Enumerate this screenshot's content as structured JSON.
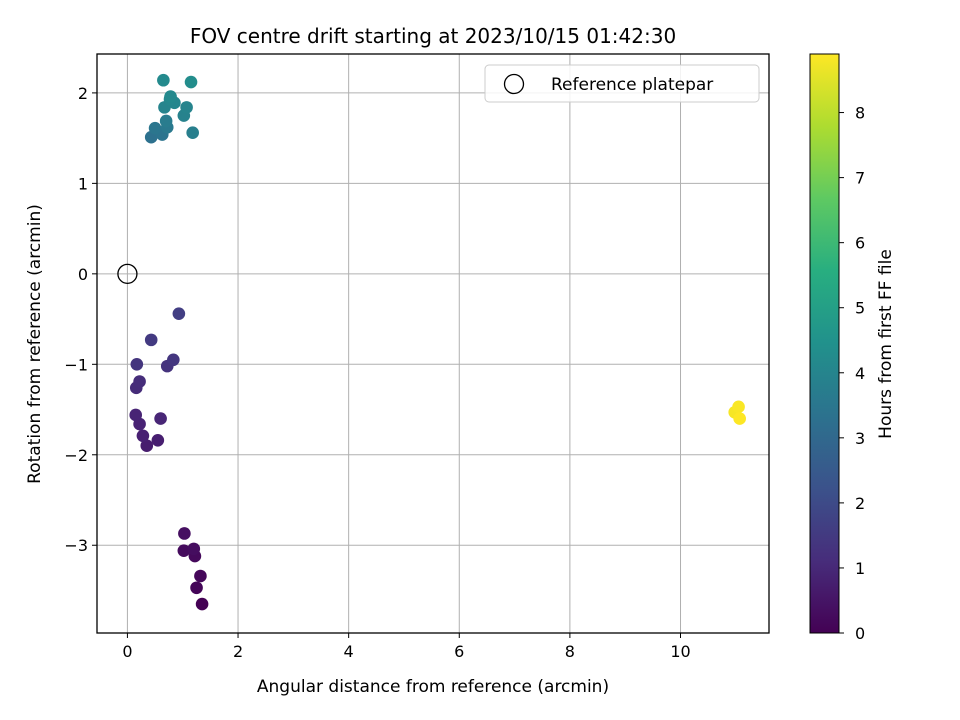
{
  "chart_data": {
    "type": "scatter",
    "title": "FOV centre drift starting at 2023/10/15 01:42:30",
    "xlabel": "Angular distance from reference (arcmin)",
    "ylabel": "Rotation from reference (arcmin)",
    "xlim": [
      -0.55,
      11.6
    ],
    "ylim": [
      -3.97,
      2.43
    ],
    "xticks": [
      0,
      2,
      4,
      6,
      8,
      10
    ],
    "yticks": [
      -3,
      -2,
      -1,
      0,
      1,
      2
    ],
    "grid": true,
    "legend": {
      "position": "top-right",
      "entries": [
        "Reference platepar"
      ]
    },
    "reference": {
      "name": "Reference platepar",
      "x": 0,
      "y": 0
    },
    "colorbar": {
      "label": "Hours from first FF file",
      "range": [
        0,
        8.9
      ],
      "ticks": [
        0,
        1,
        2,
        3,
        4,
        5,
        6,
        7,
        8
      ],
      "colormap": "viridis"
    },
    "points": [
      {
        "x": 1.35,
        "y": -3.65,
        "c": 0.0
      },
      {
        "x": 1.25,
        "y": -3.47,
        "c": 0.1
      },
      {
        "x": 1.32,
        "y": -3.34,
        "c": 0.15
      },
      {
        "x": 1.22,
        "y": -3.12,
        "c": 0.2
      },
      {
        "x": 1.02,
        "y": -3.06,
        "c": 0.25
      },
      {
        "x": 1.2,
        "y": -3.04,
        "c": 0.3
      },
      {
        "x": 1.03,
        "y": -2.87,
        "c": 0.35
      },
      {
        "x": 0.35,
        "y": -1.9,
        "c": 0.7
      },
      {
        "x": 0.55,
        "y": -1.84,
        "c": 0.75
      },
      {
        "x": 0.28,
        "y": -1.79,
        "c": 0.8
      },
      {
        "x": 0.22,
        "y": -1.66,
        "c": 0.85
      },
      {
        "x": 0.15,
        "y": -1.56,
        "c": 0.9
      },
      {
        "x": 0.6,
        "y": -1.6,
        "c": 0.95
      },
      {
        "x": 0.16,
        "y": -1.26,
        "c": 1.1
      },
      {
        "x": 0.22,
        "y": -1.19,
        "c": 1.15
      },
      {
        "x": 0.72,
        "y": -1.02,
        "c": 1.3
      },
      {
        "x": 0.17,
        "y": -1.0,
        "c": 1.35
      },
      {
        "x": 0.83,
        "y": -0.95,
        "c": 1.4
      },
      {
        "x": 0.43,
        "y": -0.73,
        "c": 1.5
      },
      {
        "x": 0.93,
        "y": -0.44,
        "c": 1.6
      },
      {
        "x": 0.43,
        "y": 1.51,
        "c": 3.3
      },
      {
        "x": 0.63,
        "y": 1.54,
        "c": 3.4
      },
      {
        "x": 0.5,
        "y": 1.61,
        "c": 3.5
      },
      {
        "x": 0.72,
        "y": 1.62,
        "c": 3.6
      },
      {
        "x": 0.7,
        "y": 1.69,
        "c": 3.7
      },
      {
        "x": 1.18,
        "y": 1.56,
        "c": 3.8
      },
      {
        "x": 1.02,
        "y": 1.75,
        "c": 3.9
      },
      {
        "x": 1.07,
        "y": 1.84,
        "c": 4.0
      },
      {
        "x": 0.67,
        "y": 1.84,
        "c": 4.0
      },
      {
        "x": 0.85,
        "y": 1.89,
        "c": 4.05
      },
      {
        "x": 0.77,
        "y": 1.93,
        "c": 4.1
      },
      {
        "x": 0.78,
        "y": 1.96,
        "c": 4.15
      },
      {
        "x": 0.65,
        "y": 2.14,
        "c": 4.2
      },
      {
        "x": 1.15,
        "y": 2.12,
        "c": 4.3
      },
      {
        "x": 10.98,
        "y": -1.53,
        "c": 8.8
      },
      {
        "x": 11.05,
        "y": -1.47,
        "c": 8.85
      },
      {
        "x": 11.07,
        "y": -1.6,
        "c": 8.9
      }
    ]
  }
}
